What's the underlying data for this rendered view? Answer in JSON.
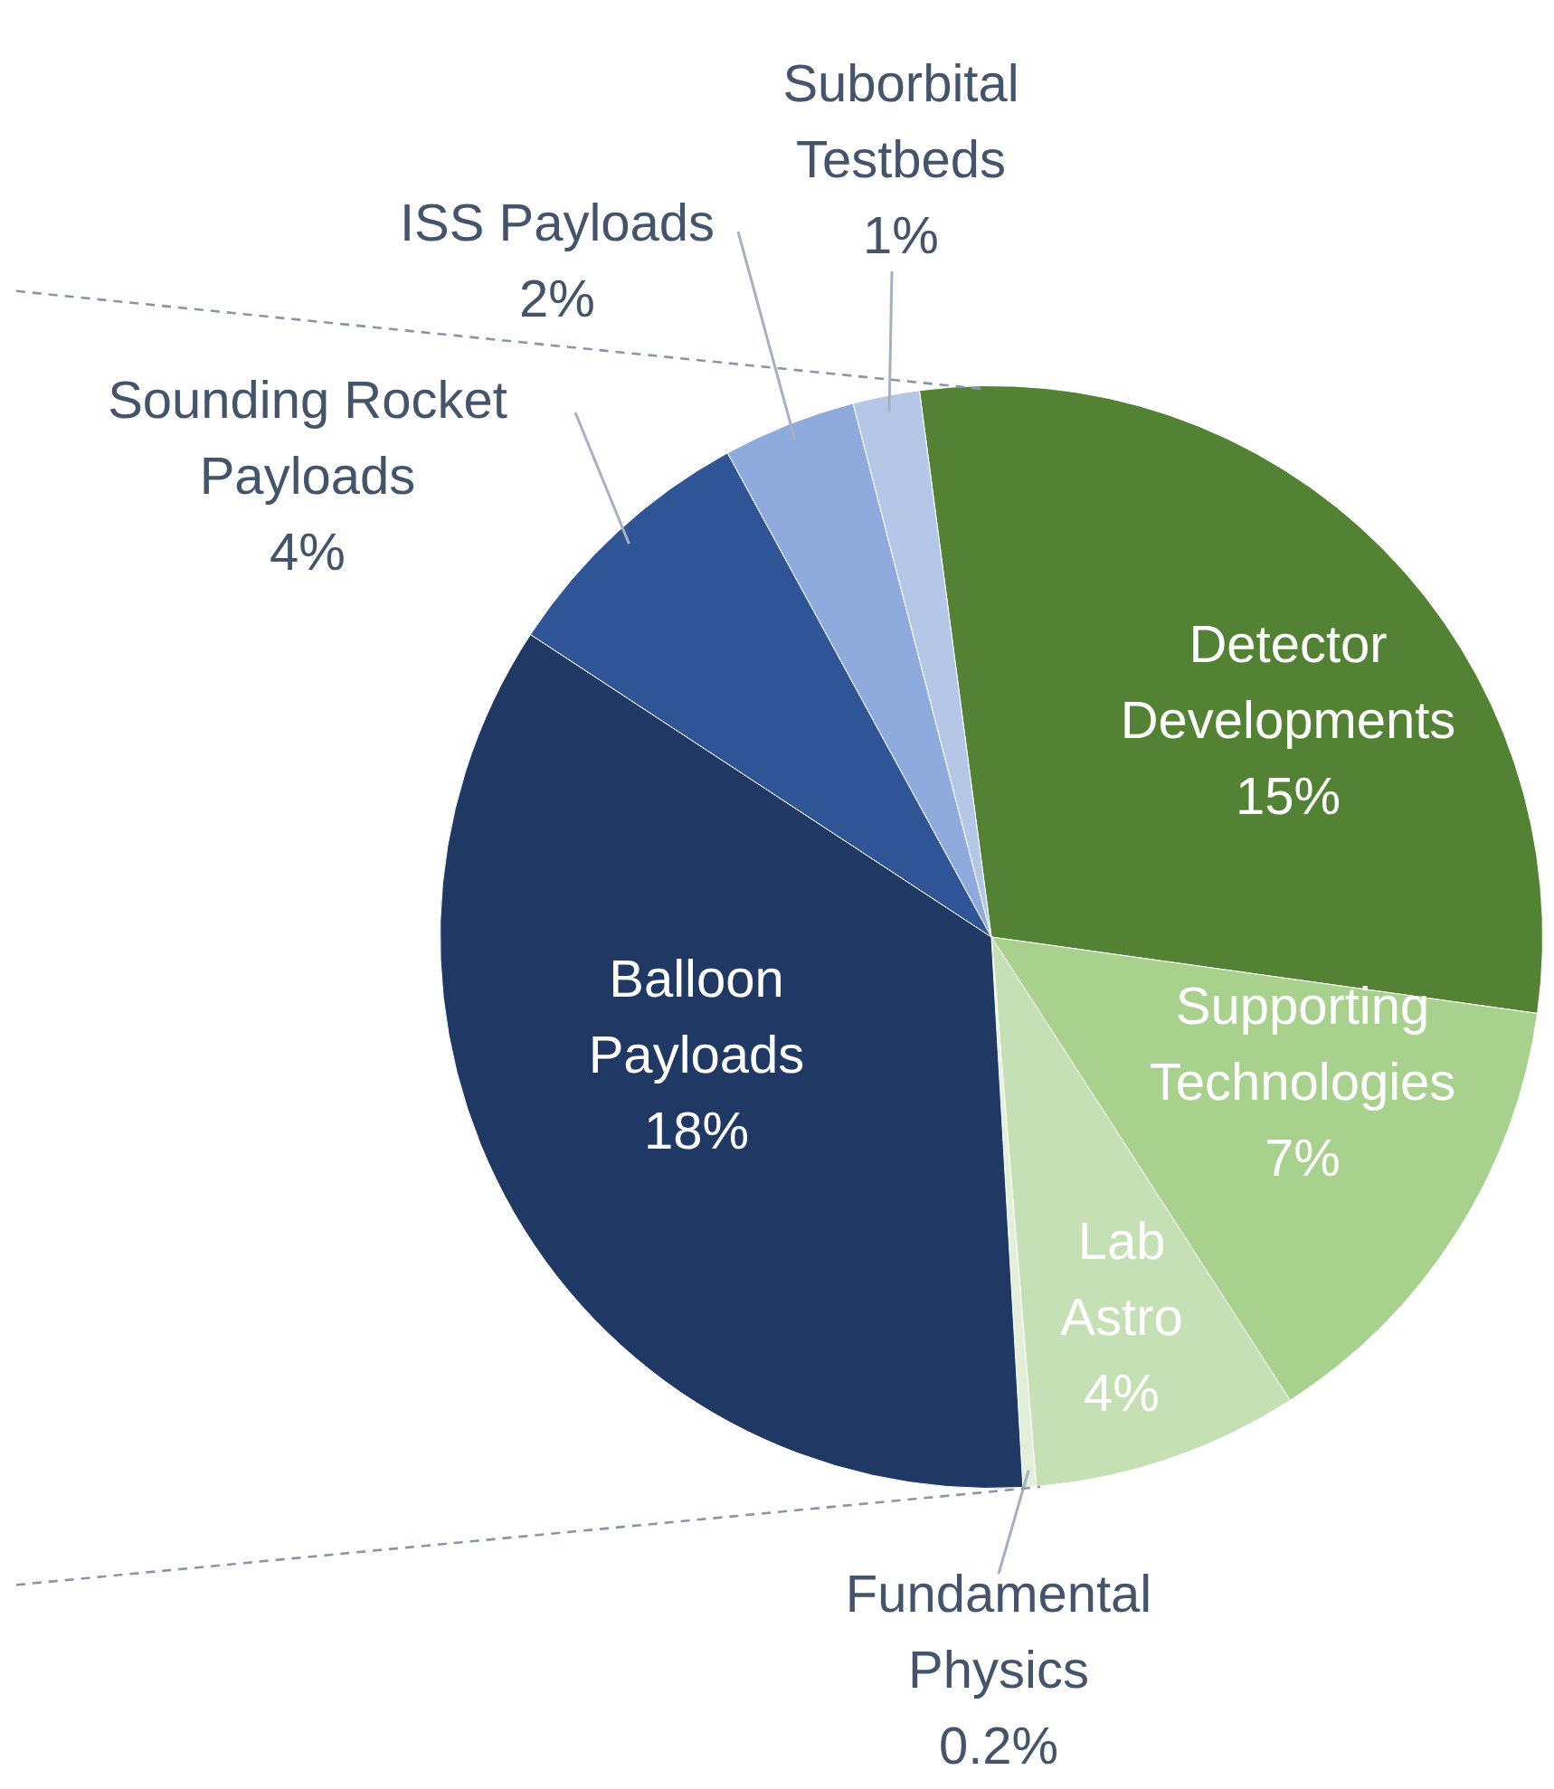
{
  "chart_data": {
    "type": "pie",
    "categories": [
      "Detector Developments",
      "Supporting Technologies",
      "Lab Astro",
      "Fundamental Physics",
      "Balloon Payloads",
      "Sounding Rocket Payloads",
      "ISS Payloads",
      "Suborbital Testbeds"
    ],
    "values": [
      15,
      7,
      4,
      0.2,
      18,
      4,
      2,
      1
    ],
    "colors": [
      "#548235",
      "#a9d18e",
      "#c5e0b4",
      "#e2f0d9",
      "#203864",
      "#2f5597",
      "#8faadc",
      "#b4c7e7"
    ],
    "value_labels": [
      "15%",
      "7%",
      "4%",
      "0.2%",
      "18%",
      "4%",
      "2%",
      "1%"
    ]
  }
}
